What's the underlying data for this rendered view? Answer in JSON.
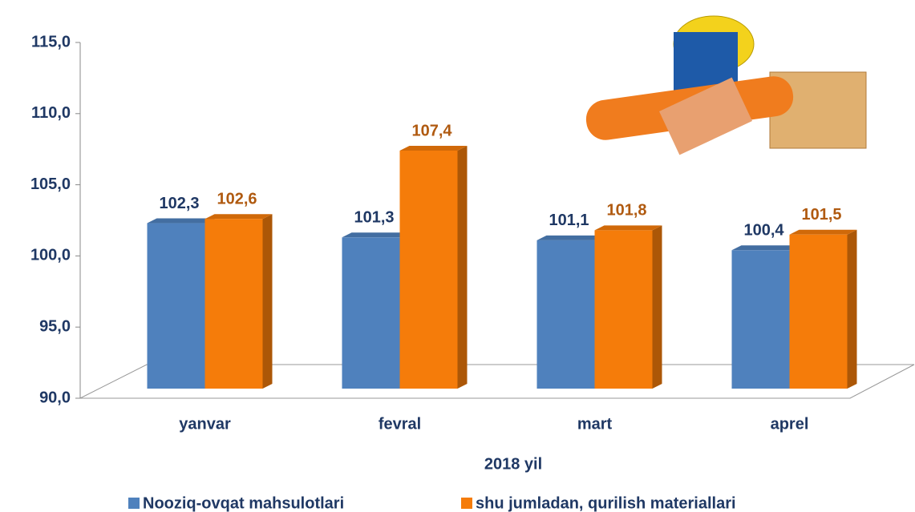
{
  "chart_data": {
    "type": "bar",
    "x_label": "2018 yil",
    "categories": [
      "yanvar",
      "fevral",
      "mart",
      "aprel"
    ],
    "series": [
      {
        "name": "Nooziq-ovqat mahsulotlari",
        "color": "#4f81bd",
        "label_color": "#1f3864",
        "values": [
          102.3,
          101.3,
          101.1,
          100.4
        ],
        "value_labels": [
          "102,3",
          "101,3",
          "101,1",
          "100,4"
        ]
      },
      {
        "name": "shu jumladan, qurilish materiallari",
        "color": "#f57c0a",
        "label_color": "#b05a10",
        "values": [
          102.6,
          107.4,
          101.8,
          101.5
        ],
        "value_labels": [
          "102,6",
          "107,4",
          "101,8",
          "101,5"
        ]
      }
    ],
    "ylim": [
      90,
      115
    ],
    "yticks": [
      {
        "value": 90,
        "label": "90,0"
      },
      {
        "value": 95,
        "label": "95,0"
      },
      {
        "value": 100,
        "label": "100,0"
      },
      {
        "value": 105,
        "label": "105,0"
      },
      {
        "value": 110,
        "label": "110,0"
      },
      {
        "value": 115,
        "label": "115,0"
      }
    ]
  }
}
